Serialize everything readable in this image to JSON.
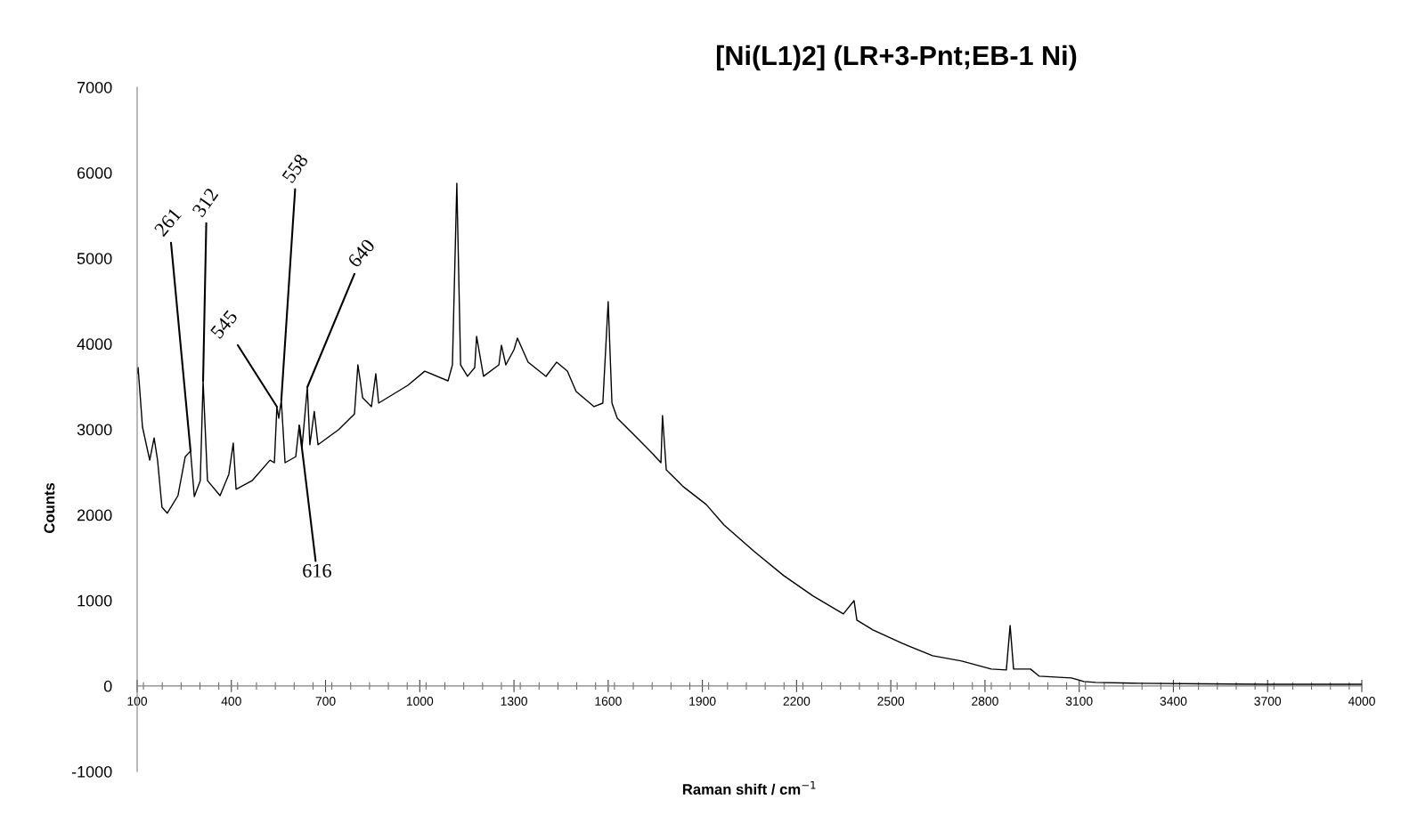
{
  "chart_data": {
    "type": "line",
    "title": "[Ni(L1)2] (LR+3-Pnt;EB-1 Ni)",
    "xlabel": "Raman shift / cm$^{−1}$",
    "ylabel": "Counts",
    "series": [
      {
        "color": "#000000",
        "x": [
          100,
          103,
          117,
          140,
          154,
          165,
          179,
          196,
          230,
          253,
          270,
          282,
          301,
          310,
          324,
          364,
          392,
          406,
          415,
          466,
          523,
          537,
          545,
          551,
          559,
          571,
          605,
          616,
          625,
          642,
          650,
          664,
          676,
          741,
          792,
          803,
          818,
          846,
          860,
          869,
          962,
          1016,
          1090,
          1104,
          1118,
          1130,
          1152,
          1175,
          1181,
          1203,
          1252,
          1260,
          1274,
          1300,
          1311,
          1345,
          1402,
          1436,
          1470,
          1498,
          1555,
          1583,
          1600,
          1612,
          1629,
          1686,
          1742,
          1768,
          1773,
          1785,
          1839,
          1912,
          1969,
          2066,
          2159,
          2253,
          2349,
          2383,
          2392,
          2443,
          2536,
          2633,
          2726,
          2820,
          2868,
          2880,
          2891,
          2945,
          2973,
          3075,
          3115,
          3152,
          3294,
          3500,
          3700,
          4000
        ],
        "values": [
          3650,
          3723,
          3026,
          2640,
          2900,
          2640,
          2090,
          2020,
          2225,
          2680,
          2746,
          2215,
          2400,
          3567,
          2400,
          2225,
          2475,
          2840,
          2300,
          2400,
          2640,
          2610,
          3265,
          3130,
          3340,
          2610,
          2680,
          3045,
          2790,
          3494,
          2820,
          3210,
          2820,
          2995,
          3180,
          3754,
          3370,
          3265,
          3650,
          3307,
          3515,
          3680,
          3567,
          3754,
          5876,
          3754,
          3620,
          3723,
          4087,
          3620,
          3754,
          3983,
          3754,
          3931,
          4066,
          3786,
          3619,
          3786,
          3682,
          3442,
          3266,
          3307,
          4493,
          3307,
          3130,
          2922,
          2714,
          2610,
          3162,
          2527,
          2330,
          2122,
          1882,
          1570,
          1290,
          1050,
          842,
          998,
          770,
          655,
          499,
          354,
          291,
          198,
          187,
          707,
          198,
          198,
          114,
          94,
          52,
          42,
          31,
          25,
          20,
          20
        ]
      }
    ],
    "xlim": [
      100,
      4000
    ],
    "xticks": [
      100,
      400,
      700,
      1000,
      1300,
      1600,
      1900,
      2200,
      2500,
      2800,
      3100,
      3400,
      3700,
      4000
    ],
    "ylim": [
      -1000,
      7000
    ],
    "yticks": [
      -1000,
      0,
      1000,
      2000,
      3000,
      4000,
      5000,
      6000,
      7000
    ],
    "grid": false,
    "marker": "none",
    "line_style": "solid",
    "annotations": [
      {
        "text": "261",
        "x": 270,
        "y": 2746
      },
      {
        "text": "312",
        "x": 310,
        "y": 3567
      },
      {
        "text": "545",
        "x": 545,
        "y": 3265
      },
      {
        "text": "558",
        "x": 559,
        "y": 3340
      },
      {
        "text": "616",
        "x": 616,
        "y": 3045
      },
      {
        "text": "640",
        "x": 642,
        "y": 3494
      }
    ]
  }
}
